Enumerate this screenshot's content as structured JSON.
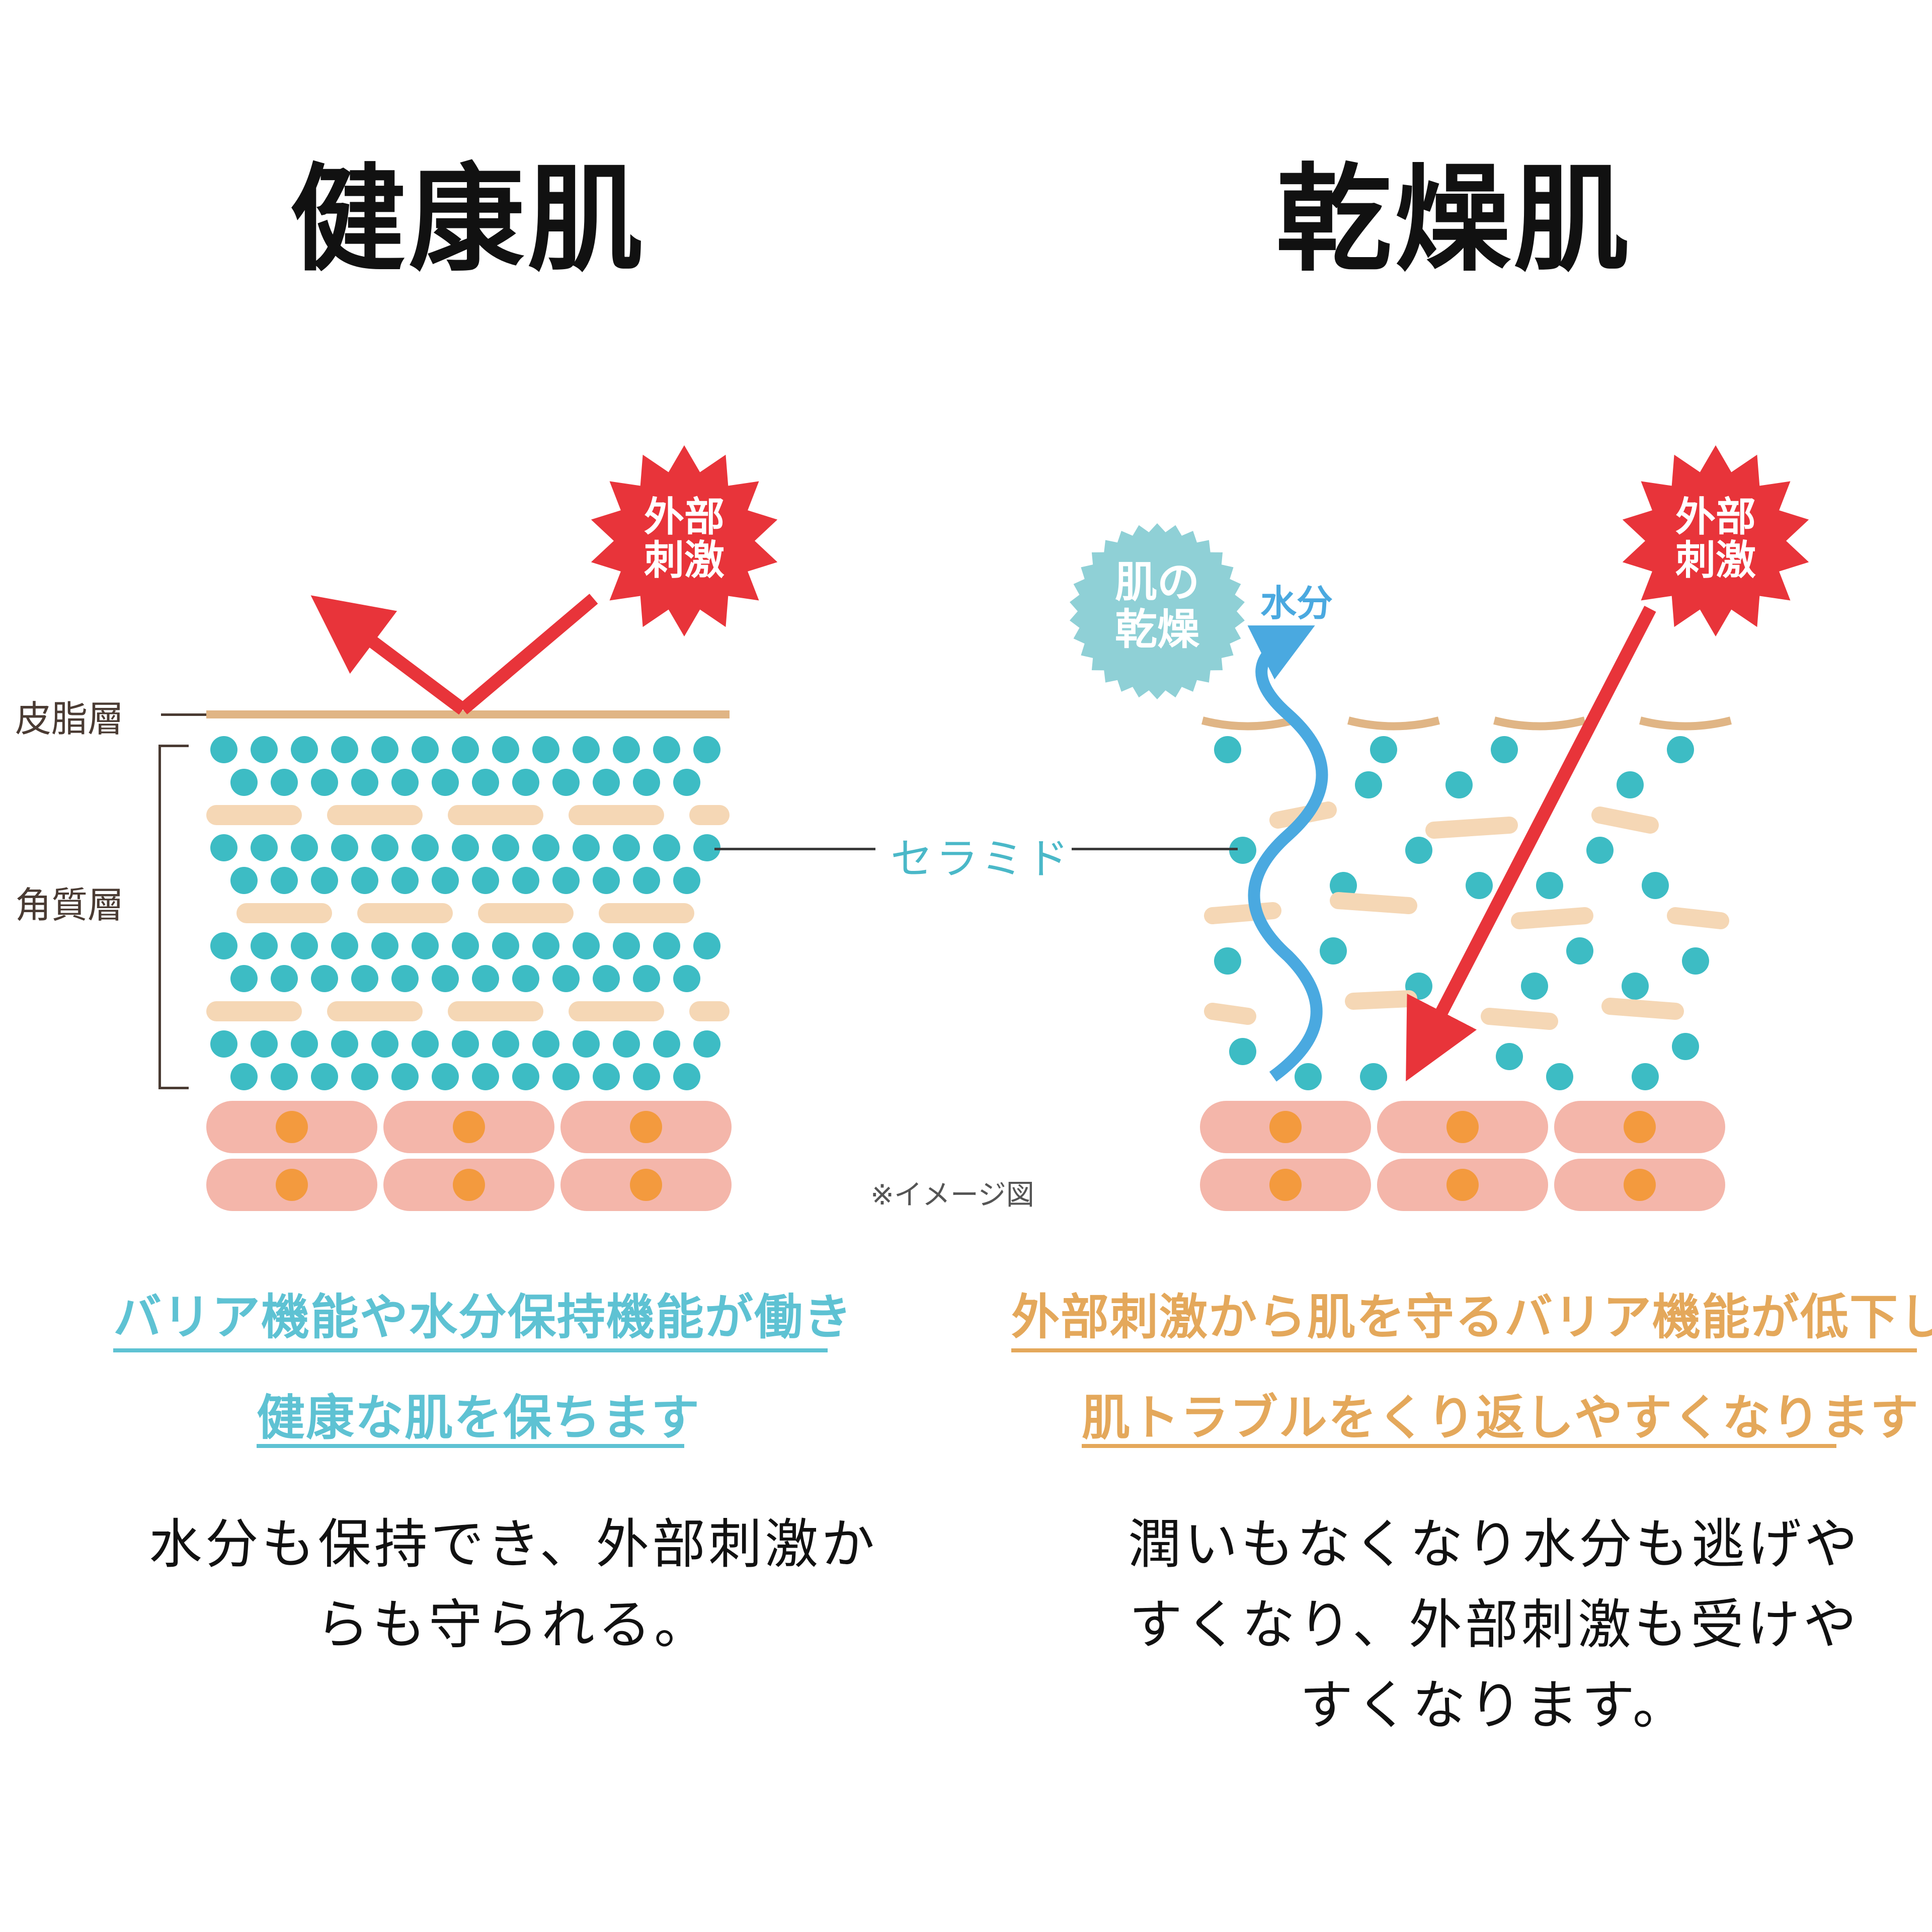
{
  "left": {
    "title": "健康肌",
    "label_sebum": "皮脂層",
    "label_corneum": "角質層",
    "badge": [
      "外部",
      "刺激"
    ],
    "headline1": "バリア機能や水分保持機能が働き",
    "headline2": "健康な肌を保ちます",
    "description": [
      "水分も保持でき、外部刺激か",
      "らも守られる。"
    ]
  },
  "right": {
    "title": "乾燥肌",
    "badge": [
      "外部",
      "刺激"
    ],
    "dry_badge": [
      "肌の",
      "乾燥"
    ],
    "water_label": "水分",
    "headline1": "外部刺激から肌を守るバリア機能が低下し",
    "headline2": "肌トラブルをくり返しやすくなります",
    "description": [
      "潤いもなくなり水分も逃げや",
      "すくなり、外部刺激も受けや",
      "すくなります。"
    ]
  },
  "center": {
    "ceramide_label": "セラミド",
    "note": "※イメージ図"
  },
  "colors": {
    "ceramide": "#3dbcc4",
    "lipid": "#f5d7b5",
    "sebum": "#e0b585",
    "cell": "#f4b6aa",
    "nucleus": "#f39a3e",
    "stimulus": "#e8343a",
    "water": "#4aa9e0",
    "dry_badge": "#8fd0d6",
    "accent_blue": "#5ec2d3",
    "accent_orange": "#e4a85b"
  }
}
